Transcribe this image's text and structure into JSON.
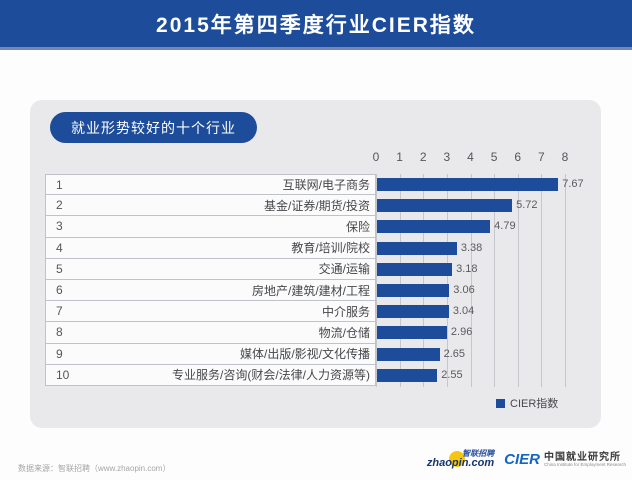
{
  "header": {
    "title": "2015年第四季度行业CIER指数"
  },
  "panel": {
    "badge_label": "就业形势较好的十个行业"
  },
  "chart_data": {
    "type": "bar",
    "orientation": "horizontal",
    "title": "2015年第四季度行业CIER指数",
    "subtitle": "就业形势较好的十个行业",
    "ranks": [
      "1",
      "2",
      "3",
      "4",
      "5",
      "6",
      "7",
      "8",
      "9",
      "10"
    ],
    "categories": [
      "互联网/电子商务",
      "基金/证券/期货/投资",
      "保险",
      "教育/培训/院校",
      "交通/运输",
      "房地产/建筑/建材/工程",
      "中介服务",
      "物流/仓储",
      "媒体/出版/影视/文化传播",
      "专业服务/咨询(财会/法律/人力资源等)"
    ],
    "values": [
      7.67,
      5.72,
      4.79,
      3.38,
      3.18,
      3.06,
      3.04,
      2.96,
      2.65,
      2.55
    ],
    "xlim": [
      0,
      8
    ],
    "ticks": [
      0,
      1,
      2,
      3,
      4,
      5,
      6,
      7,
      8
    ],
    "grid": true,
    "legend": [
      "CIER指数"
    ],
    "legend_position": "bottom-right",
    "bar_color": "#1d4c9b"
  },
  "legend": {
    "label": "CIER指数"
  },
  "footer": {
    "source_text": "数据来源：智联招聘（www.zhaopin.com）",
    "zhaopin_logo_cn": "智联招聘",
    "zhaopin_logo_en": "zhaopin.com",
    "cier_logo_mark": "CIER",
    "cier_logo_cn": "中国就业研究所",
    "cier_logo_en": "China Institute for Employment Research"
  },
  "colors": {
    "header_bg": "#1d4c9b",
    "bar": "#1d4c9b",
    "card_bg": "#e9e9eb",
    "gridline": "#c5c7cd"
  }
}
